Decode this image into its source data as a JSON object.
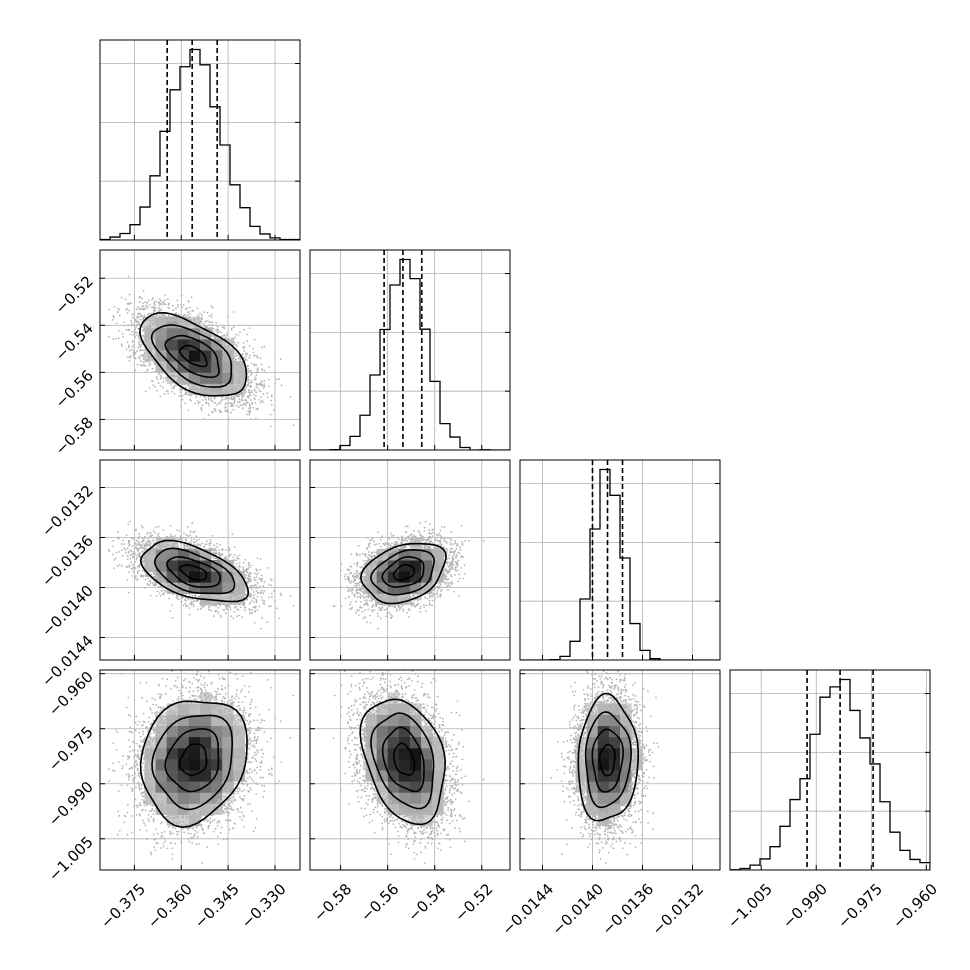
{
  "chart_data": {
    "type": "corner",
    "params": [
      {
        "center": -0.356,
        "sigma": 0.0085,
        "range": [
          -0.386,
          -0.322
        ],
        "quantiles": [
          -0.3645,
          -0.3565,
          -0.3485
        ],
        "ticks": [
          -0.375,
          -0.36,
          -0.345,
          -0.33
        ],
        "tick_labels": [
          "−0.375",
          "−0.360",
          "−0.345",
          "−0.330"
        ]
      },
      {
        "center": -0.553,
        "sigma": 0.0088,
        "range": [
          -0.593,
          -0.508
        ],
        "quantiles": [
          -0.5615,
          -0.5535,
          -0.5455
        ],
        "ticks": [
          -0.58,
          -0.56,
          -0.54,
          -0.52
        ],
        "tick_labels": [
          "−0.58",
          "−0.56",
          "−0.54",
          "−0.52"
        ]
      },
      {
        "center": -0.01388,
        "sigma": 0.00012,
        "range": [
          -0.01458,
          -0.01298
        ],
        "quantiles": [
          -0.014,
          -0.01388,
          -0.01376
        ],
        "ticks": [
          -0.0144,
          -0.014,
          -0.0136,
          -0.0132
        ],
        "tick_labels": [
          "−0.0144",
          "−0.0140",
          "−0.0136",
          "−0.0132"
        ]
      },
      {
        "center": -0.9835,
        "sigma": 0.0085,
        "range": [
          -1.0135,
          -0.959
        ],
        "quantiles": [
          -0.9925,
          -0.9835,
          -0.9745
        ],
        "ticks": [
          -1.005,
          -0.99,
          -0.975,
          -0.96
        ],
        "tick_labels": [
          "−1.005",
          "−0.990",
          "−0.975",
          "−0.960"
        ]
      }
    ],
    "correlations": [
      [
        1.0,
        -0.55,
        -0.5,
        0.15
      ],
      [
        -0.55,
        1.0,
        0.3,
        -0.3
      ],
      [
        -0.5,
        0.3,
        1.0,
        0.05
      ],
      [
        0.15,
        -0.3,
        0.05,
        1.0
      ]
    ],
    "n_samples": 6000,
    "hist_bins": 20,
    "density_bins": 18,
    "contour_levels_sigma": [
      0.5,
      1.0,
      1.5,
      2.0
    ],
    "colors": {
      "ink": "#000000",
      "grid": "#b0b0b0",
      "scatter": "#b5b5b5"
    },
    "grid": true
  }
}
